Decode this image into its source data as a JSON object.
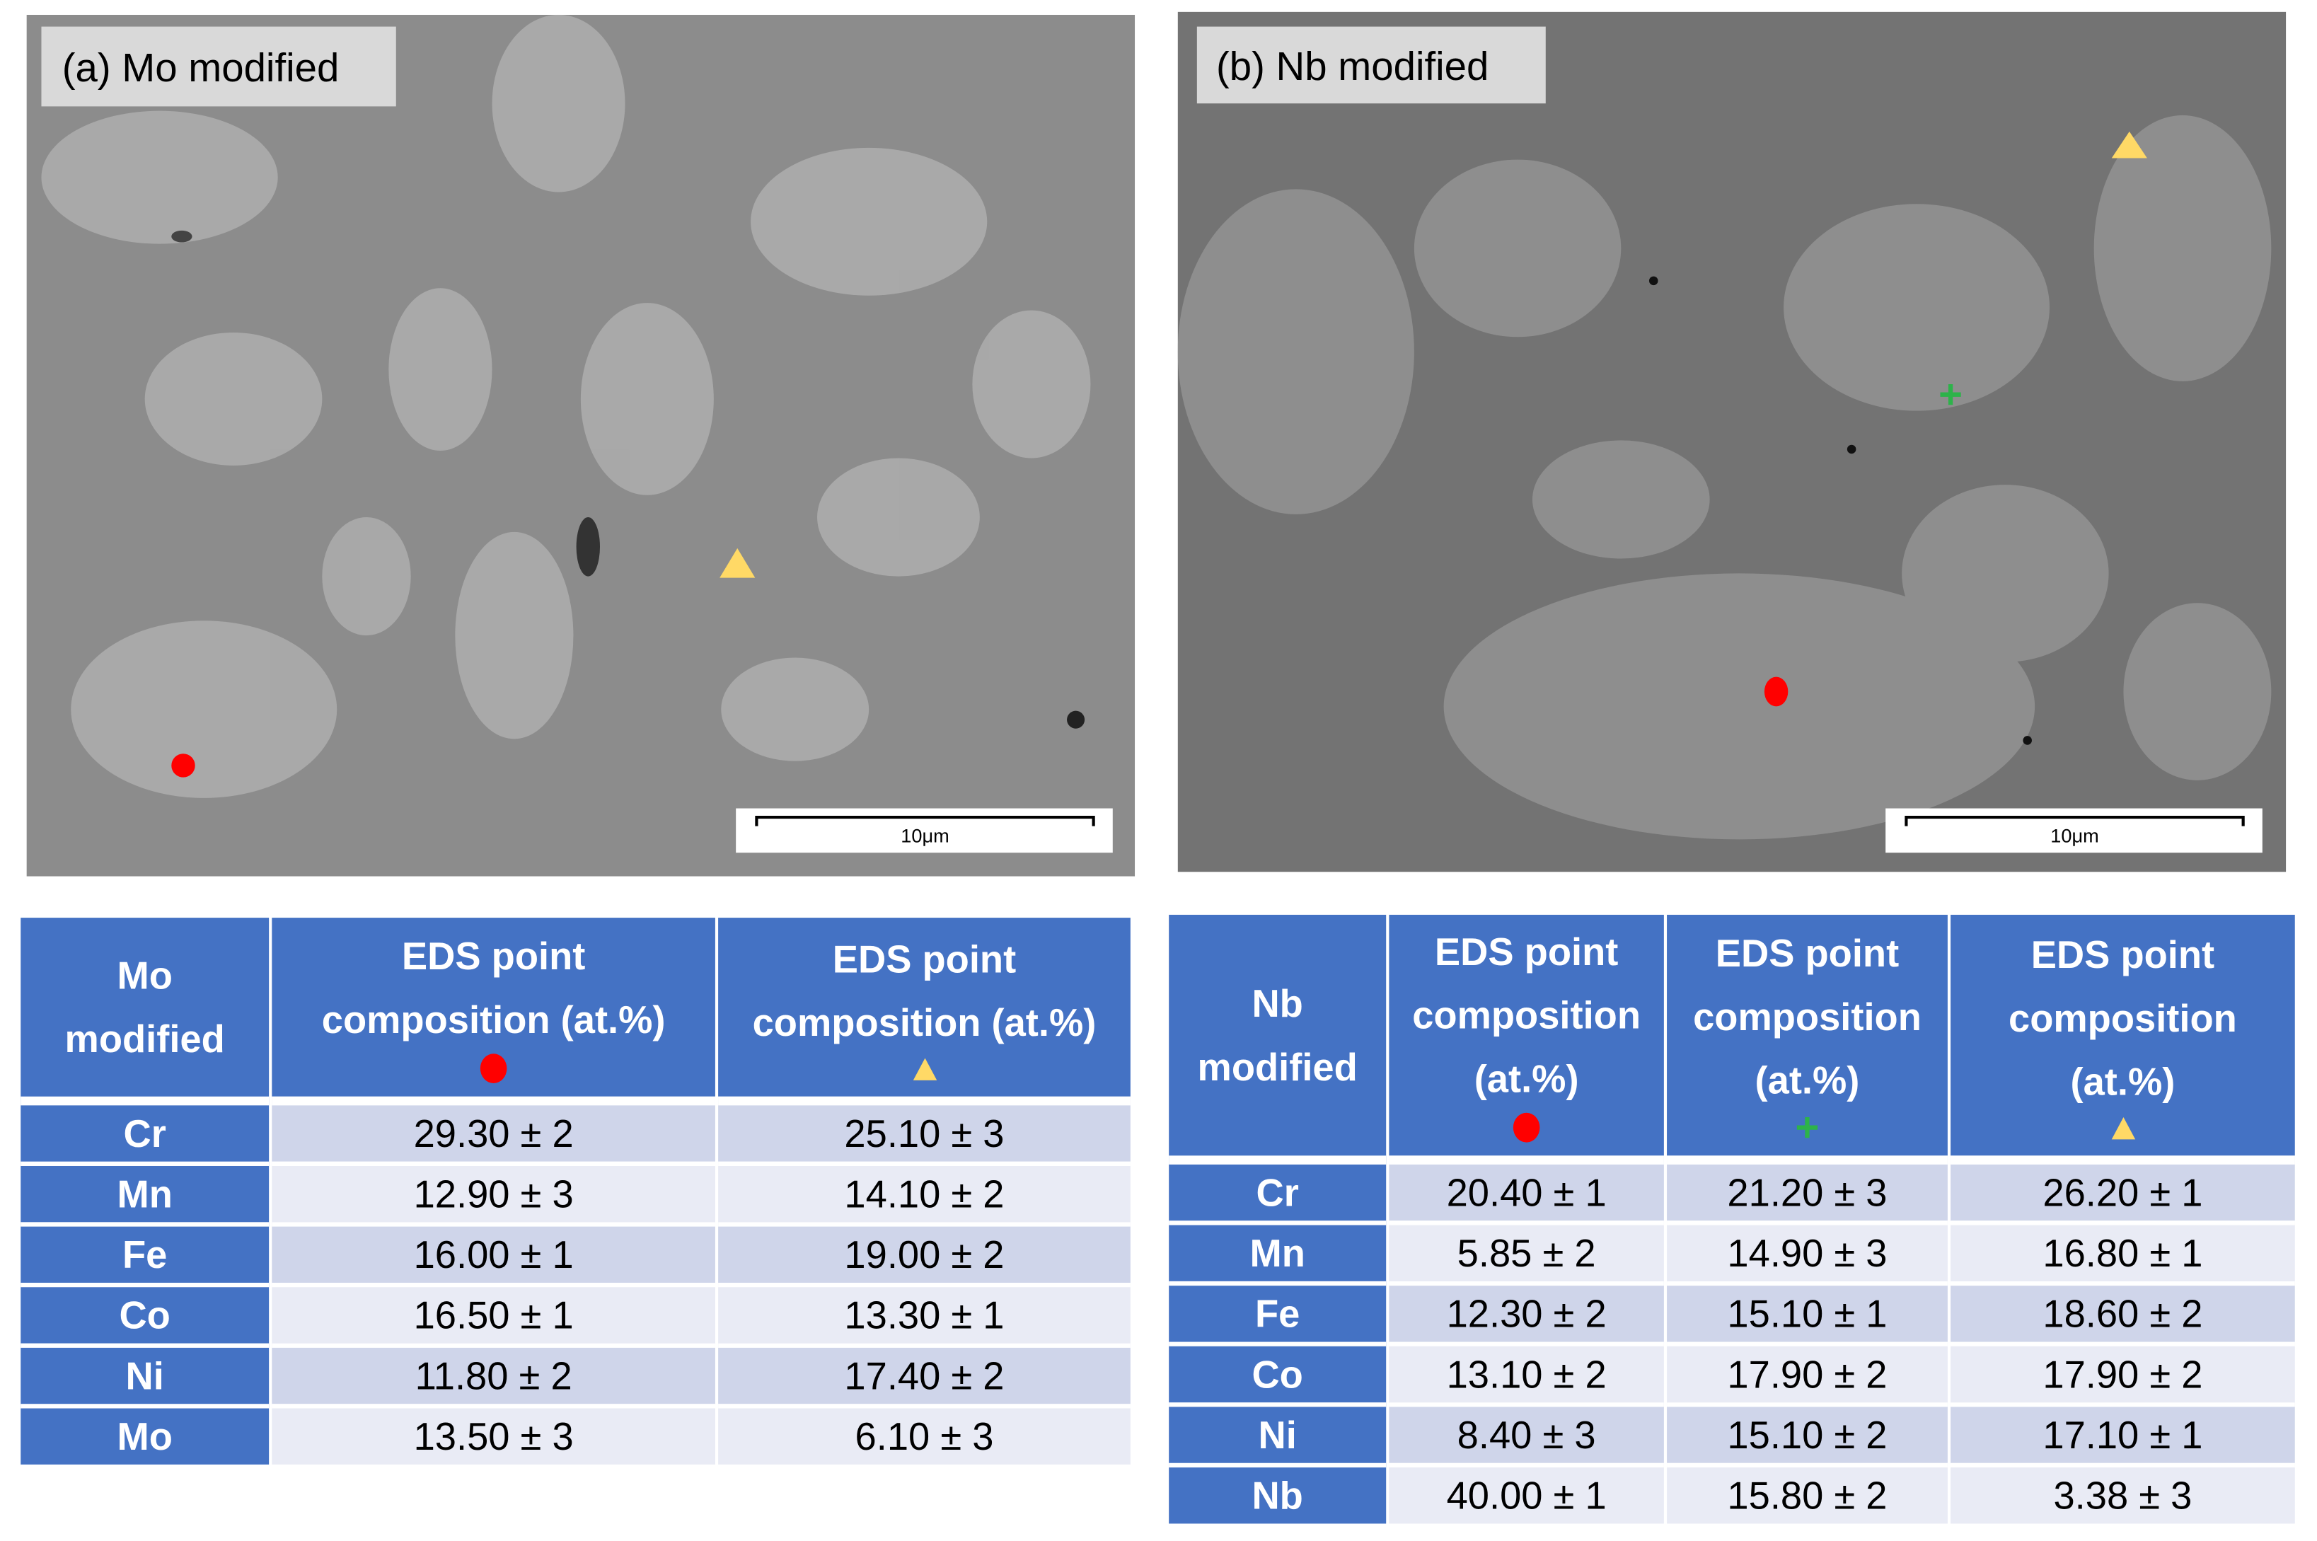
{
  "panels": [
    {
      "label": "(a) Mo modified",
      "scale_bar": "10μm"
    },
    {
      "label": "(b) Nb modified",
      "scale_bar": "10μm"
    }
  ],
  "tables": [
    {
      "header": [
        [
          "Mo",
          "modified"
        ],
        [
          "EDS point",
          "composition (at.%)"
        ],
        [
          "EDS point",
          "composition (at.%)"
        ]
      ],
      "rows": [
        [
          "Cr",
          "29.30 ± 2",
          "25.10 ± 3"
        ],
        [
          "Mn",
          "12.90 ± 3",
          "14.10 ± 2"
        ],
        [
          "Fe",
          "16.00 ± 1",
          "19.00 ± 2"
        ],
        [
          "Co",
          "16.50 ± 1",
          "13.30 ± 1"
        ],
        [
          "Ni",
          "11.80 ± 2",
          "17.40 ± 2"
        ],
        [
          "Mo",
          "13.50 ± 3",
          "6.10 ± 3"
        ]
      ]
    },
    {
      "header": [
        [
          "Nb",
          "modified"
        ],
        [
          "EDS point",
          "composition",
          "(at.%)"
        ],
        [
          "EDS point",
          "composition",
          "(at.%)"
        ],
        [
          "EDS point",
          "composition",
          "(at.%)"
        ]
      ],
      "rows": [
        [
          "Cr",
          "20.40 ± 1",
          "21.20 ± 3",
          "26.20 ± 1"
        ],
        [
          "Mn",
          "5.85 ± 2",
          "14.90 ± 3",
          "16.80 ± 1"
        ],
        [
          "Fe",
          "12.30 ± 2",
          "15.10 ± 1",
          "18.60 ± 2"
        ],
        [
          "Co",
          "13.10 ± 2",
          "17.90 ± 2",
          "17.90 ± 2"
        ],
        [
          "Ni",
          "8.40 ± 3",
          "15.10 ± 2",
          "17.10 ± 1"
        ],
        [
          "Nb",
          "40.00 ± 1",
          "15.80 ± 2",
          "3.38 ± 3"
        ]
      ]
    }
  ]
}
